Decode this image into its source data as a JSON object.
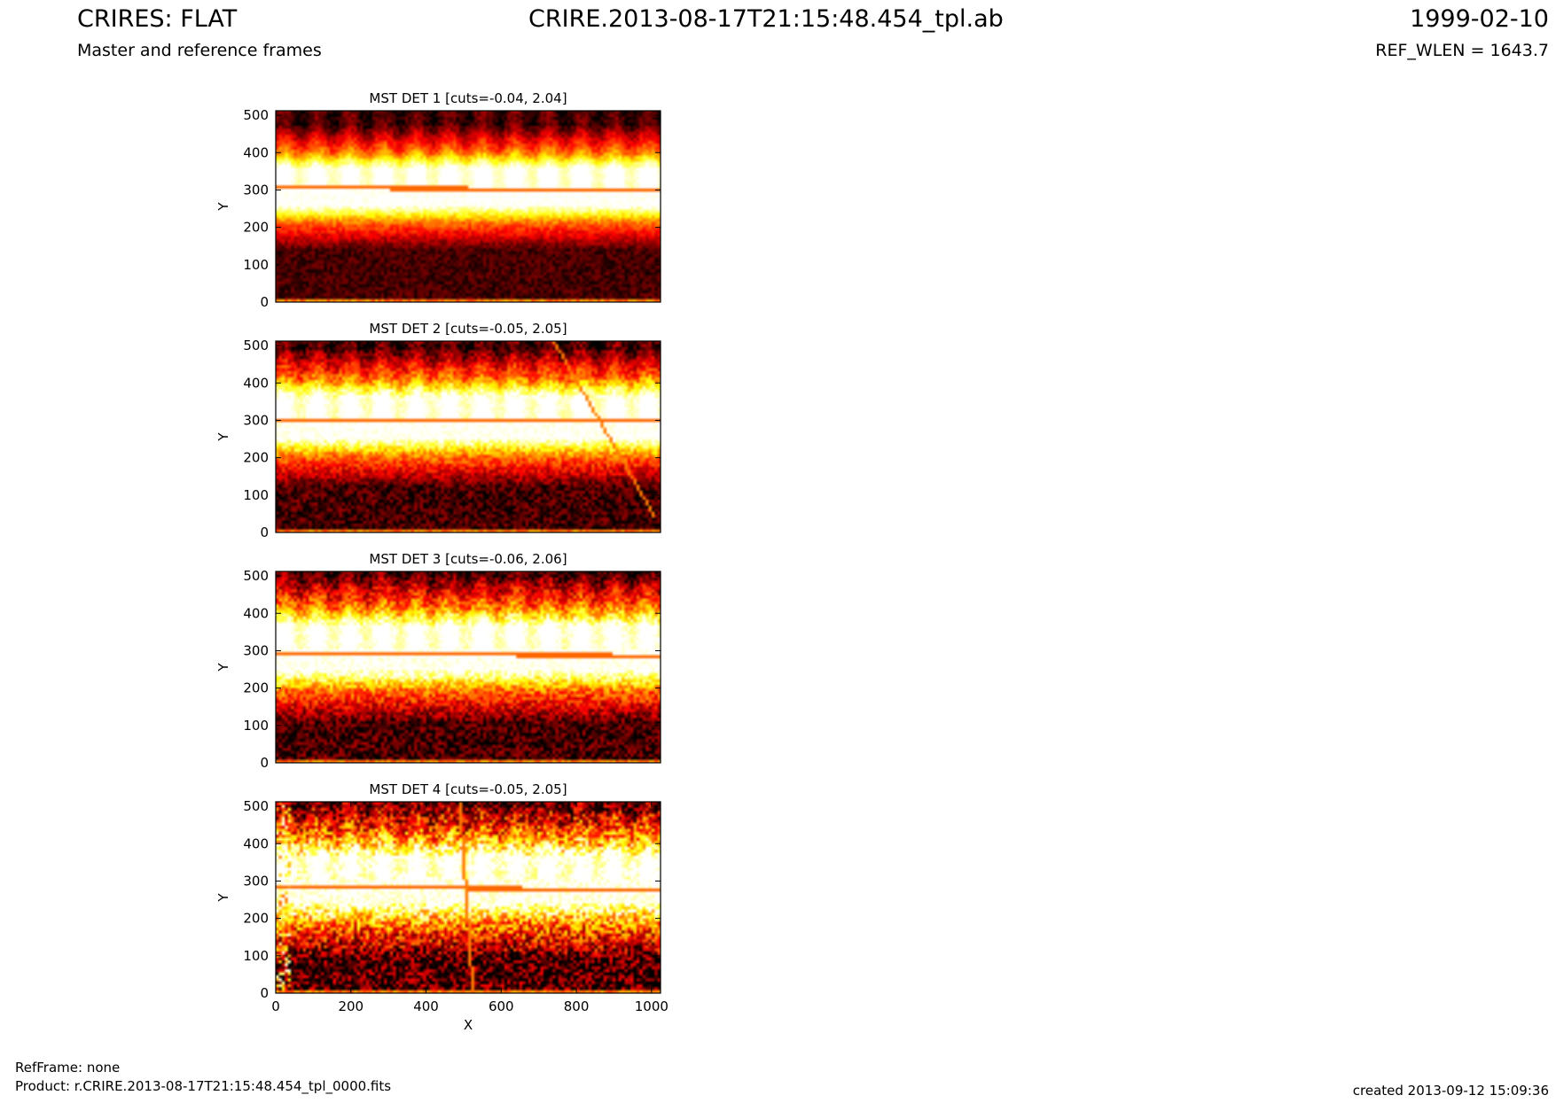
{
  "header": {
    "title_left": "CRIRES: FLAT",
    "title_center": "CRIRE.2013-08-17T21:15:48.454_tpl.ab",
    "title_right": "1999-02-10",
    "subtitle_left": "Master and reference frames",
    "subtitle_right": "REF_WLEN = 1643.7"
  },
  "footer": {
    "refframe": "RefFrame: none",
    "product": "Product: r.CRIRE.2013-08-17T21:15:48.454_tpl_0000.fits",
    "created": "created 2013-09-12 15:09:36"
  },
  "colormap": "hot",
  "chart_data": [
    {
      "type": "heatmap",
      "title": "MST DET 1 [cuts=-0.04, 2.04]",
      "cuts": [
        -0.04,
        2.04
      ],
      "xlabel": "",
      "ylabel": "Y",
      "xlim": [
        0,
        1024
      ],
      "ylim": [
        0,
        512
      ],
      "xticks": [],
      "yticks": [
        0,
        100,
        200,
        300,
        400,
        500
      ],
      "bright_band": [
        215,
        400
      ],
      "dark_line_y": [
        306,
        301
      ],
      "slant_line": null,
      "edge_spots": false,
      "noise": 0.1
    },
    {
      "type": "heatmap",
      "title": "MST DET 2 [cuts=-0.05, 2.05]",
      "cuts": [
        -0.05,
        2.05
      ],
      "xlabel": "",
      "ylabel": "Y",
      "xlim": [
        0,
        1024
      ],
      "ylim": [
        0,
        512
      ],
      "xticks": [],
      "yticks": [
        0,
        100,
        200,
        300,
        400,
        500
      ],
      "bright_band": [
        205,
        410
      ],
      "dark_line_y": [
        303,
        300
      ],
      "slant_line": {
        "x0": 740,
        "y0": 512,
        "x1": 1010,
        "y1": 40
      },
      "edge_spots": false,
      "noise": 0.16
    },
    {
      "type": "heatmap",
      "title": "MST DET 3 [cuts=-0.06, 2.06]",
      "cuts": [
        -0.06,
        2.06
      ],
      "xlabel": "",
      "ylabel": "Y",
      "xlim": [
        0,
        1024
      ],
      "ylim": [
        0,
        512
      ],
      "xticks": [],
      "yticks": [
        0,
        100,
        200,
        300,
        400,
        500
      ],
      "bright_band": [
        195,
        415
      ],
      "dark_line_y": [
        291,
        287
      ],
      "slant_line": null,
      "edge_spots": false,
      "noise": 0.2
    },
    {
      "type": "heatmap",
      "title": "MST DET 4 [cuts=-0.05, 2.05]",
      "cuts": [
        -0.05,
        2.05
      ],
      "xlabel": "X",
      "ylabel": "Y",
      "xlim": [
        0,
        1024
      ],
      "ylim": [
        0,
        512
      ],
      "xticks": [
        0,
        200,
        400,
        600,
        800,
        1000
      ],
      "yticks": [
        0,
        100,
        200,
        300,
        400,
        500
      ],
      "bright_band": [
        185,
        420
      ],
      "dark_line_y": [
        284,
        277
      ],
      "slant_line": {
        "x0": 490,
        "y0": 512,
        "x1": 525,
        "y1": 0
      },
      "edge_spots": true,
      "noise": 0.34
    }
  ]
}
